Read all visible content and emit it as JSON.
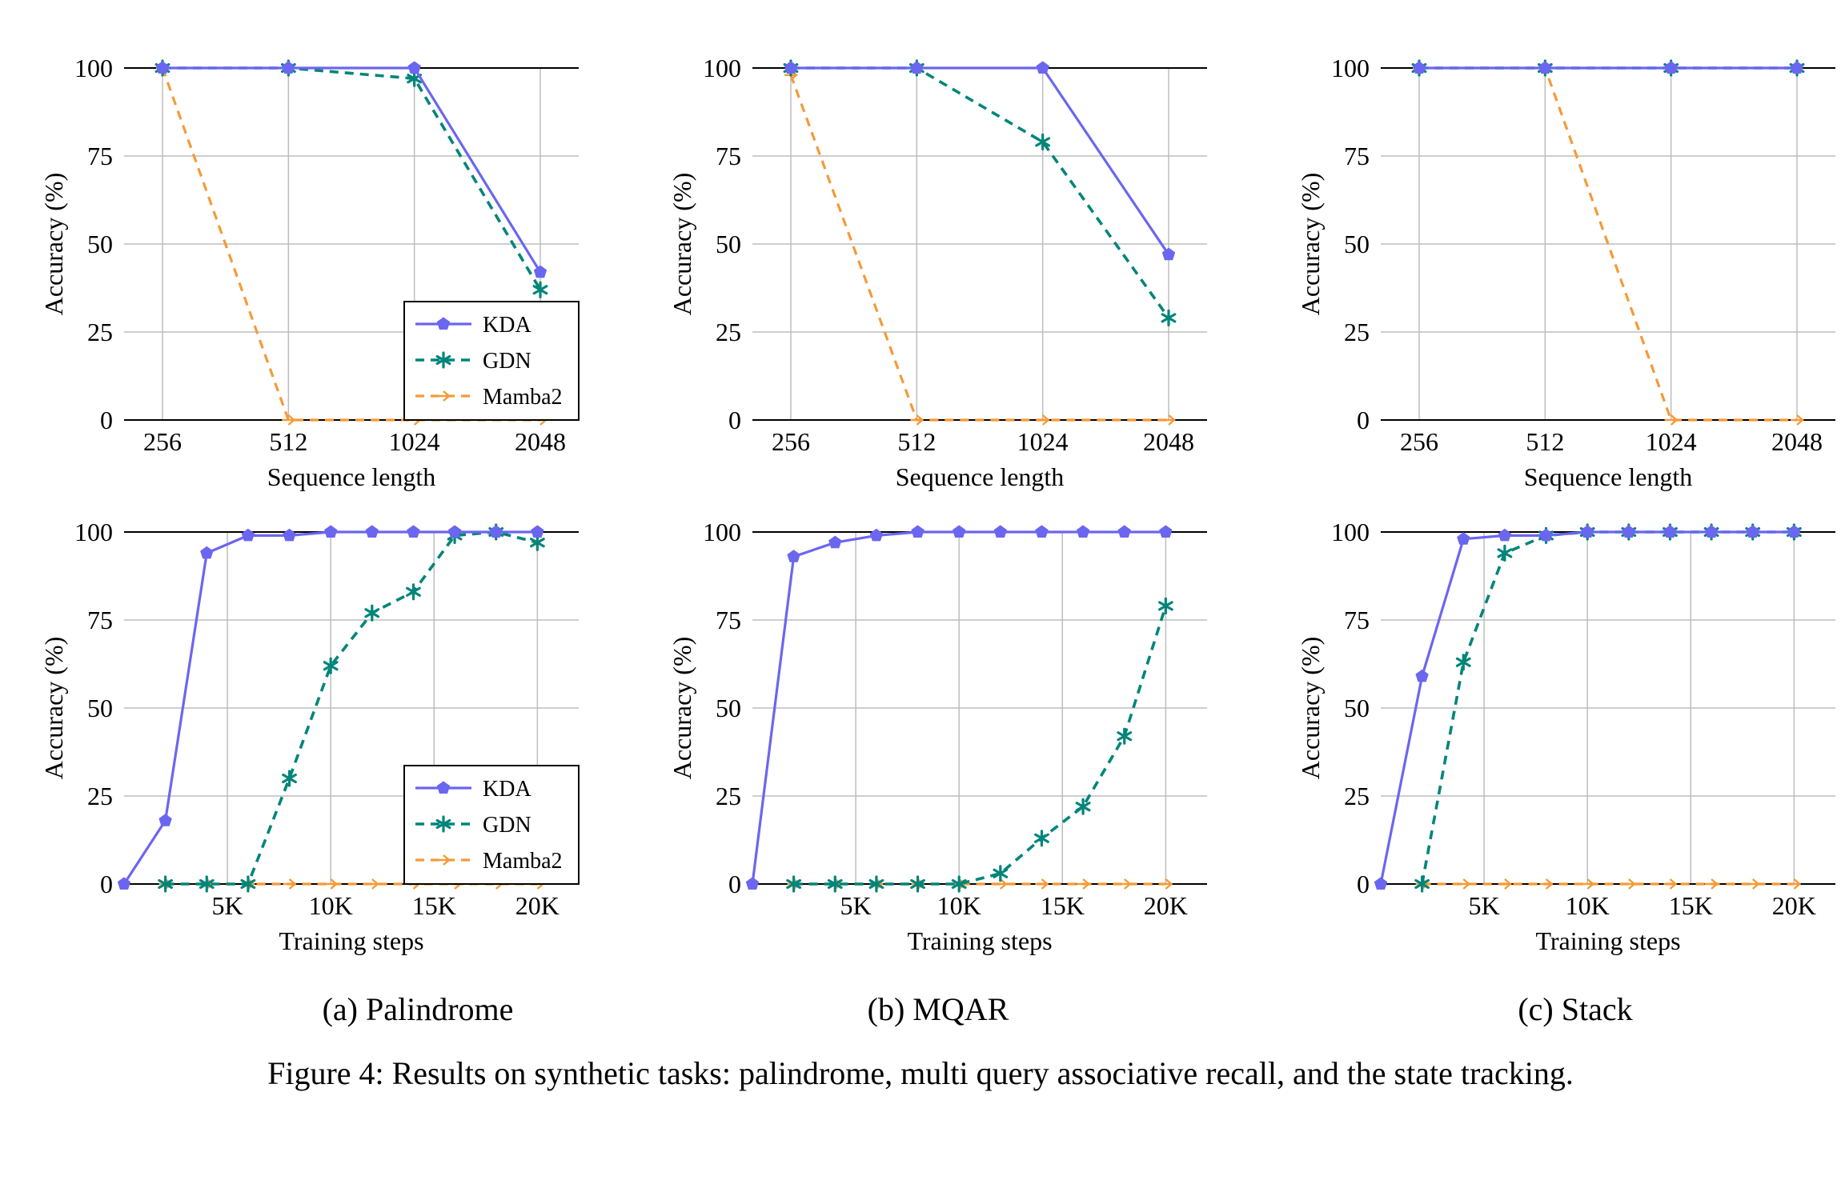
{
  "figure": {
    "caption": "Figure 4: Results on synthetic tasks: palindrome, multi query associative recall, and the state tracking.",
    "subcaptions": [
      "(a) Palindrome",
      "(b) MQAR",
      "(c) Stack"
    ]
  },
  "colors": {
    "KDA": "#6B66F0",
    "GDN": "#00857A",
    "Mamba2": "#F59A38"
  },
  "legend_labels": [
    "KDA",
    "GDN",
    "Mamba2"
  ],
  "chart_data": [
    {
      "type": "line",
      "panel": "a",
      "row": "top",
      "xlabel": "Sequence length",
      "ylabel": "Accuracy (%)",
      "categories": [
        "256",
        "512",
        "1024",
        "2048"
      ],
      "ylim": [
        0,
        100
      ],
      "yticks": [
        0,
        25,
        50,
        75,
        100
      ],
      "grid": true,
      "legend": "bottom-right",
      "series": [
        {
          "name": "KDA",
          "values": [
            100,
            100,
            100,
            42
          ]
        },
        {
          "name": "GDN",
          "values": [
            100,
            100,
            97,
            37
          ]
        },
        {
          "name": "Mamba2",
          "values": [
            100,
            0,
            0,
            0
          ]
        }
      ]
    },
    {
      "type": "line",
      "panel": "b",
      "row": "top",
      "xlabel": "Sequence length",
      "ylabel": "Accuracy (%)",
      "categories": [
        "256",
        "512",
        "1024",
        "2048"
      ],
      "ylim": [
        0,
        100
      ],
      "yticks": [
        0,
        25,
        50,
        75,
        100
      ],
      "grid": true,
      "legend": "none",
      "series": [
        {
          "name": "KDA",
          "values": [
            100,
            100,
            100,
            47
          ]
        },
        {
          "name": "GDN",
          "values": [
            100,
            100,
            79,
            29
          ]
        },
        {
          "name": "Mamba2",
          "values": [
            98,
            0,
            0,
            0
          ]
        }
      ]
    },
    {
      "type": "line",
      "panel": "c",
      "row": "top",
      "xlabel": "Sequence length",
      "ylabel": "Accuracy (%)",
      "categories": [
        "256",
        "512",
        "1024",
        "2048"
      ],
      "ylim": [
        0,
        100
      ],
      "yticks": [
        0,
        25,
        50,
        75,
        100
      ],
      "grid": true,
      "legend": "none",
      "series": [
        {
          "name": "KDA",
          "values": [
            100,
            100,
            100,
            100
          ]
        },
        {
          "name": "GDN",
          "values": [
            100,
            100,
            100,
            100
          ]
        },
        {
          "name": "Mamba2",
          "values": [
            100,
            100,
            0,
            0
          ]
        }
      ]
    },
    {
      "type": "line",
      "panel": "a",
      "row": "bottom",
      "xlabel": "Training steps",
      "ylabel": "Accuracy (%)",
      "x": [
        0,
        2000,
        4000,
        6000,
        8000,
        10000,
        12000,
        14000,
        16000,
        18000,
        20000
      ],
      "xlim": [
        0,
        22000
      ],
      "xticks": [
        5000,
        10000,
        15000,
        20000
      ],
      "xticklabels": [
        "5K",
        "10K",
        "15K",
        "20K"
      ],
      "ylim": [
        0,
        100
      ],
      "yticks": [
        0,
        25,
        50,
        75,
        100
      ],
      "grid": true,
      "legend": "bottom-right",
      "series": [
        {
          "name": "KDA",
          "values": [
            0,
            18,
            94,
            99,
            99,
            100,
            100,
            100,
            100,
            100,
            100
          ]
        },
        {
          "name": "GDN",
          "values": [
            null,
            0,
            0,
            0,
            30,
            62,
            77,
            83,
            99,
            100,
            97
          ]
        },
        {
          "name": "Mamba2",
          "values": [
            null,
            0,
            0,
            0,
            0,
            0,
            0,
            0,
            0,
            0,
            0
          ]
        }
      ]
    },
    {
      "type": "line",
      "panel": "b",
      "row": "bottom",
      "xlabel": "Training steps",
      "ylabel": "Accuracy (%)",
      "x": [
        0,
        2000,
        4000,
        6000,
        8000,
        10000,
        12000,
        14000,
        16000,
        18000,
        20000
      ],
      "xlim": [
        0,
        22000
      ],
      "xticks": [
        5000,
        10000,
        15000,
        20000
      ],
      "xticklabels": [
        "5K",
        "10K",
        "15K",
        "20K"
      ],
      "ylim": [
        0,
        100
      ],
      "yticks": [
        0,
        25,
        50,
        75,
        100
      ],
      "grid": true,
      "legend": "none",
      "series": [
        {
          "name": "KDA",
          "values": [
            0,
            93,
            97,
            99,
            100,
            100,
            100,
            100,
            100,
            100,
            100
          ]
        },
        {
          "name": "GDN",
          "values": [
            null,
            0,
            0,
            0,
            0,
            0,
            3,
            13,
            22,
            42,
            79
          ]
        },
        {
          "name": "Mamba2",
          "values": [
            null,
            0,
            0,
            0,
            0,
            0,
            0,
            0,
            0,
            0,
            0
          ]
        }
      ]
    },
    {
      "type": "line",
      "panel": "c",
      "row": "bottom",
      "xlabel": "Training steps",
      "ylabel": "Accuracy (%)",
      "x": [
        0,
        2000,
        4000,
        6000,
        8000,
        10000,
        12000,
        14000,
        16000,
        18000,
        20000
      ],
      "xlim": [
        0,
        22000
      ],
      "xticks": [
        5000,
        10000,
        15000,
        20000
      ],
      "xticklabels": [
        "5K",
        "10K",
        "15K",
        "20K"
      ],
      "ylim": [
        0,
        100
      ],
      "yticks": [
        0,
        25,
        50,
        75,
        100
      ],
      "grid": true,
      "legend": "none",
      "series": [
        {
          "name": "KDA",
          "values": [
            0,
            59,
            98,
            99,
            99,
            100,
            100,
            100,
            100,
            100,
            100
          ]
        },
        {
          "name": "GDN",
          "values": [
            null,
            0,
            63,
            94,
            99,
            100,
            100,
            100,
            100,
            100,
            100
          ]
        },
        {
          "name": "Mamba2",
          "values": [
            null,
            0,
            0,
            0,
            0,
            0,
            0,
            0,
            0,
            0,
            0
          ]
        }
      ]
    }
  ]
}
